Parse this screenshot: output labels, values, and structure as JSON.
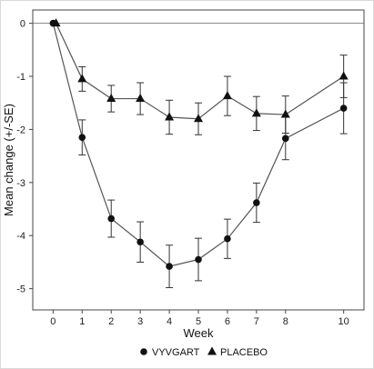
{
  "chart_data": {
    "type": "line",
    "title": "",
    "xlabel": "Week",
    "ylabel": "Mean change (+/-SE)",
    "xlim": [
      -0.7,
      10.7
    ],
    "ylim": [
      -5.4,
      0.25
    ],
    "xticks": [
      0,
      1,
      2,
      3,
      4,
      5,
      6,
      7,
      8,
      10
    ],
    "yticks": [
      0,
      -1,
      -2,
      -3,
      -4,
      -5
    ],
    "reference_line": 0,
    "grid": false,
    "legend_position": "bottom",
    "series": [
      {
        "name": "VYVGART",
        "marker": "circle",
        "color": "#111111",
        "points": [
          {
            "x": 0,
            "y": 0,
            "se": 0
          },
          {
            "x": 1,
            "y": -2.15,
            "se": 0.33
          },
          {
            "x": 2,
            "y": -3.68,
            "se": 0.35
          },
          {
            "x": 3,
            "y": -4.12,
            "se": 0.38
          },
          {
            "x": 4,
            "y": -4.58,
            "se": 0.4
          },
          {
            "x": 5,
            "y": -4.45,
            "se": 0.4
          },
          {
            "x": 6,
            "y": -4.06,
            "se": 0.37
          },
          {
            "x": 7,
            "y": -3.38,
            "se": 0.37
          },
          {
            "x": 8,
            "y": -2.17,
            "se": 0.4
          },
          {
            "x": 10,
            "y": -1.6,
            "se": 0.48
          }
        ]
      },
      {
        "name": "PLACEBO",
        "marker": "triangle",
        "color": "#111111",
        "points": [
          {
            "x": 0.1,
            "y": 0,
            "se": 0
          },
          {
            "x": 1,
            "y": -1.05,
            "se": 0.23
          },
          {
            "x": 2,
            "y": -1.42,
            "se": 0.25
          },
          {
            "x": 3,
            "y": -1.42,
            "se": 0.3
          },
          {
            "x": 4,
            "y": -1.77,
            "se": 0.32
          },
          {
            "x": 5,
            "y": -1.8,
            "se": 0.3
          },
          {
            "x": 6,
            "y": -1.37,
            "se": 0.37
          },
          {
            "x": 7,
            "y": -1.7,
            "se": 0.32
          },
          {
            "x": 8,
            "y": -1.72,
            "se": 0.35
          },
          {
            "x": 10,
            "y": -1.0,
            "se": 0.4
          }
        ]
      }
    ]
  }
}
